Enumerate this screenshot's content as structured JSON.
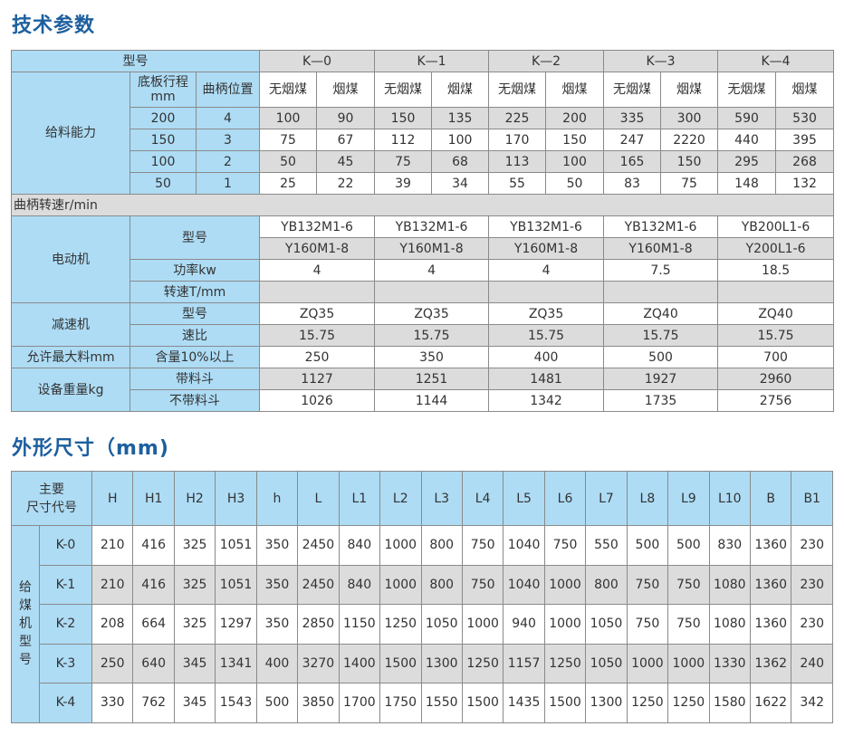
{
  "tech": {
    "title": "技术参数",
    "model_label": "型号",
    "models": [
      "K—0",
      "K—1",
      "K—2",
      "K—3",
      "K—4"
    ],
    "capacity": {
      "label": "给料能力",
      "stroke_label": "底板行程",
      "stroke_unit": "mm",
      "crank_label": "曲柄位置",
      "coal_types": [
        "无烟煤",
        "烟煤"
      ],
      "rows": [
        {
          "stroke": "200",
          "crank": "4",
          "values": [
            "100",
            "90",
            "150",
            "135",
            "225",
            "200",
            "335",
            "300",
            "590",
            "530"
          ]
        },
        {
          "stroke": "150",
          "crank": "3",
          "values": [
            "75",
            "67",
            "112",
            "100",
            "170",
            "150",
            "247",
            "2220",
            "440",
            "395"
          ]
        },
        {
          "stroke": "100",
          "crank": "2",
          "values": [
            "50",
            "45",
            "75",
            "68",
            "113",
            "100",
            "165",
            "150",
            "295",
            "268"
          ]
        },
        {
          "stroke": "50",
          "crank": "1",
          "values": [
            "25",
            "22",
            "39",
            "34",
            "55",
            "50",
            "83",
            "75",
            "148",
            "132"
          ]
        }
      ]
    },
    "crank_speed_label": "曲柄转速r/min",
    "motor": {
      "label": "电动机",
      "model_label": "型号",
      "models_a": [
        "YB132M1-6",
        "YB132M1-6",
        "YB132M1-6",
        "YB132M1-6",
        "YB200L1-6"
      ],
      "models_b": [
        "Y160M1-8",
        "Y160M1-8",
        "Y160M1-8",
        "Y160M1-8",
        "Y200L1-6"
      ],
      "power_label": "功率kw",
      "power": [
        "4",
        "4",
        "4",
        "7.5",
        "18.5"
      ],
      "speed_label": "转速T/mm"
    },
    "reducer": {
      "label": "减速机",
      "model_label": "型号",
      "models": [
        "ZQ35",
        "ZQ35",
        "ZQ35",
        "ZQ40",
        "ZQ40"
      ],
      "ratio_label": "速比",
      "ratios": [
        "15.75",
        "15.75",
        "15.75",
        "15.75",
        "15.75"
      ]
    },
    "max_feed": {
      "label": "允许最大料mm",
      "sub_label": "含量10%以上",
      "values": [
        "250",
        "350",
        "400",
        "500",
        "700"
      ]
    },
    "weight": {
      "label": "设备重量kg",
      "with_hopper_label": "带料斗",
      "with_hopper": [
        "1127",
        "1251",
        "1481",
        "1927",
        "2960"
      ],
      "without_hopper_label": "不带料斗",
      "without_hopper": [
        "1026",
        "1144",
        "1342",
        "1735",
        "2756"
      ]
    }
  },
  "dims": {
    "title": "外形尺寸（mm)",
    "header_label_1": "主要",
    "header_label_2": "尺寸代号",
    "side_label": "给煤机型号",
    "columns": [
      "H",
      "H1",
      "H2",
      "H3",
      "h",
      "L",
      "L1",
      "L2",
      "L3",
      "L4",
      "L5",
      "L6",
      "L7",
      "L8",
      "L9",
      "L10",
      "B",
      "B1"
    ],
    "rows": [
      {
        "model": "K-0",
        "values": [
          "210",
          "416",
          "325",
          "1051",
          "350",
          "2450",
          "840",
          "1000",
          "800",
          "750",
          "1040",
          "750",
          "550",
          "500",
          "500",
          "830",
          "1360",
          "230"
        ]
      },
      {
        "model": "K-1",
        "values": [
          "210",
          "416",
          "325",
          "1051",
          "350",
          "2450",
          "840",
          "1000",
          "800",
          "750",
          "1040",
          "1000",
          "800",
          "750",
          "750",
          "1080",
          "1360",
          "230"
        ]
      },
      {
        "model": "K-2",
        "values": [
          "208",
          "664",
          "325",
          "1297",
          "350",
          "2850",
          "1150",
          "1250",
          "1050",
          "1000",
          "940",
          "1000",
          "1050",
          "750",
          "750",
          "1080",
          "1360",
          "230"
        ]
      },
      {
        "model": "K-3",
        "values": [
          "250",
          "640",
          "345",
          "1341",
          "400",
          "3270",
          "1400",
          "1500",
          "1300",
          "1250",
          "1157",
          "1250",
          "1050",
          "1000",
          "1000",
          "1330",
          "1362",
          "240"
        ]
      },
      {
        "model": "K-4",
        "values": [
          "330",
          "762",
          "345",
          "1543",
          "500",
          "3850",
          "1700",
          "1750",
          "1550",
          "1500",
          "1435",
          "1500",
          "1300",
          "1250",
          "1250",
          "1580",
          "1622",
          "342"
        ]
      }
    ]
  },
  "colors": {
    "title": "#1d5f9e",
    "label_bg": "#aedcf5",
    "shade_bg": "#dcdcdc"
  }
}
